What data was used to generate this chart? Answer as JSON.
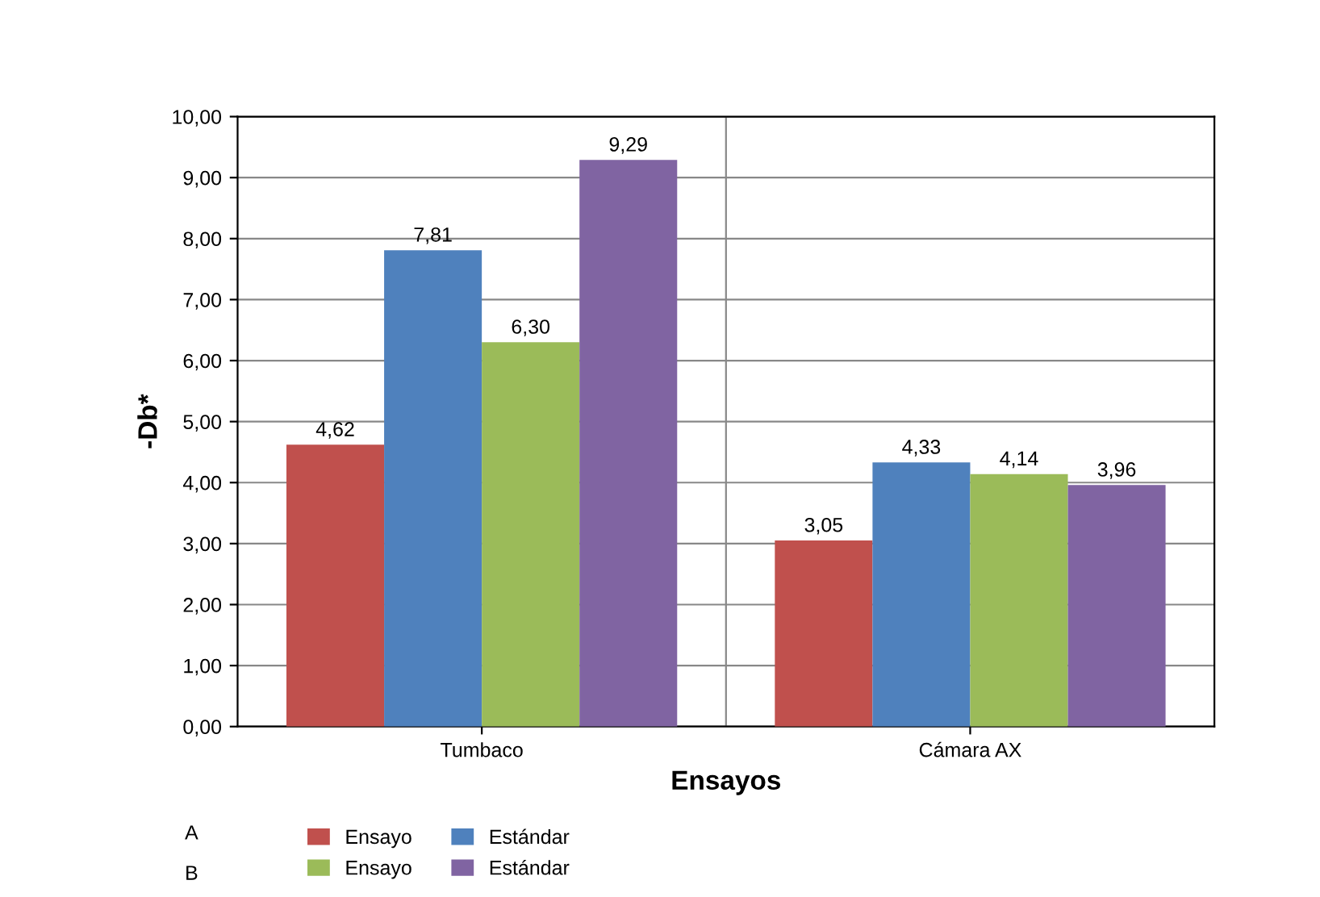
{
  "chart_data": {
    "type": "bar",
    "xlabel": "Ensayos",
    "ylabel": "-Db*",
    "categories": [
      "Tumbaco",
      "Cámara AX"
    ],
    "series": [
      {
        "name": "Ensayo",
        "color": "#c0504d",
        "values": [
          4.62,
          3.05
        ],
        "value_labels": [
          "4,62",
          "3,05"
        ]
      },
      {
        "name": "Estándar",
        "color": "#4f81bd",
        "values": [
          7.81,
          4.33
        ],
        "value_labels": [
          "7,81",
          "4,33"
        ]
      },
      {
        "name": "Ensayo",
        "color": "#9bbb59",
        "values": [
          6.3,
          4.14
        ],
        "value_labels": [
          "6,30",
          "4,14"
        ]
      },
      {
        "name": "Estándar",
        "color": "#8064a2",
        "values": [
          9.29,
          3.96
        ],
        "value_labels": [
          "9,29",
          "3,96"
        ]
      }
    ],
    "ylim": [
      0,
      10
    ],
    "yticks": [
      {
        "value": 0,
        "label": "0,00"
      },
      {
        "value": 1,
        "label": "1,00"
      },
      {
        "value": 2,
        "label": "2,00"
      },
      {
        "value": 3,
        "label": "3,00"
      },
      {
        "value": 4,
        "label": "4,00"
      },
      {
        "value": 5,
        "label": "5,00"
      },
      {
        "value": 6,
        "label": "6,00"
      },
      {
        "value": 7,
        "label": "7,00"
      },
      {
        "value": 8,
        "label": "8,00"
      },
      {
        "value": 9,
        "label": "9,00"
      },
      {
        "value": 10,
        "label": "10,00"
      }
    ],
    "grid": "y",
    "legend": "bottom",
    "annotations": [
      "A",
      "B"
    ]
  }
}
